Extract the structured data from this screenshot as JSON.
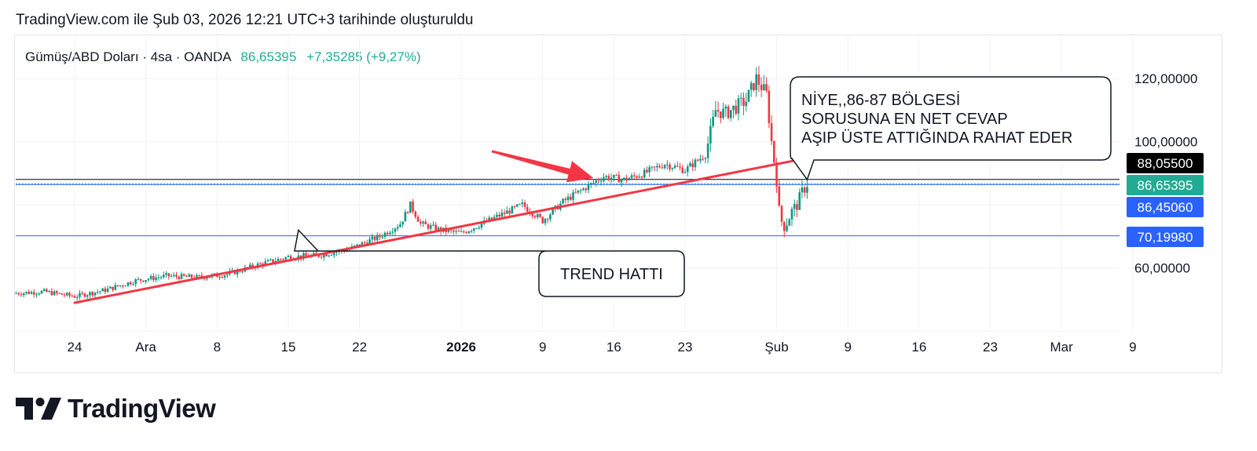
{
  "header": {
    "created_text": "TradingView.com ile Şub 03, 2026 12:21 UTC+3 tarihinde oluşturuldu"
  },
  "symbol": {
    "name": "Gümüş/ABD Doları · 4sa · OANDA",
    "price": "86,65395",
    "change": "+7,35285 (+9,27%)",
    "change_color": "#22ab94"
  },
  "brand": {
    "name": "TradingView",
    "logo_icon": "tradingview-logo-icon"
  },
  "chart_data": {
    "type": "candlestick",
    "instrument": "Gümüş/ABD Doları",
    "timeframe": "4sa",
    "source": "OANDA",
    "ylim": [
      45,
      125
    ],
    "y_ticks": [
      {
        "value": 120,
        "label": "120,00000"
      },
      {
        "value": 100,
        "label": "100,00000"
      },
      {
        "value": 60,
        "label": "60,00000"
      }
    ],
    "x_ticks": [
      {
        "day": 0,
        "label": "24"
      },
      {
        "day": 7,
        "label": "Ara"
      },
      {
        "day": 14,
        "label": "8"
      },
      {
        "day": 21,
        "label": "15"
      },
      {
        "day": 28,
        "label": "22"
      },
      {
        "day": 38,
        "label": "2026",
        "bold": true
      },
      {
        "day": 46,
        "label": "9"
      },
      {
        "day": 53,
        "label": "16"
      },
      {
        "day": 60,
        "label": "23"
      },
      {
        "day": 69,
        "label": "Şub"
      },
      {
        "day": 76,
        "label": "9"
      },
      {
        "day": 83,
        "label": "16"
      },
      {
        "day": 90,
        "label": "23"
      },
      {
        "day": 97,
        "label": "Mar"
      },
      {
        "day": 104,
        "label": "9"
      }
    ],
    "price_levels": [
      {
        "value": 88.055,
        "label": "88,05500",
        "color": "#000000",
        "line": "solid"
      },
      {
        "value": 86.65395,
        "label": "86,65395",
        "color": "#22ab94",
        "line": "dotted"
      },
      {
        "value": 86.4506,
        "label": "86,45060",
        "color": "#2962ff",
        "line": "solid"
      },
      {
        "value": 70.1998,
        "label": "70,19980",
        "color": "#2962ff",
        "line": "solid"
      }
    ],
    "trend_line": {
      "from": {
        "day": 0,
        "value": 49
      },
      "to": {
        "day": 77,
        "value": 98
      },
      "color": "#f23645"
    },
    "close_path": [
      {
        "day": -6,
        "value": 52
      },
      {
        "day": -3,
        "value": 52.5
      },
      {
        "day": 0,
        "value": 51
      },
      {
        "day": 3,
        "value": 53
      },
      {
        "day": 6,
        "value": 56
      },
      {
        "day": 9,
        "value": 57.5
      },
      {
        "day": 12,
        "value": 57
      },
      {
        "day": 15,
        "value": 58
      },
      {
        "day": 18,
        "value": 61
      },
      {
        "day": 21,
        "value": 63.5
      },
      {
        "day": 24,
        "value": 64
      },
      {
        "day": 27,
        "value": 66
      },
      {
        "day": 30,
        "value": 70
      },
      {
        "day": 32,
        "value": 74
      },
      {
        "day": 33,
        "value": 80
      },
      {
        "day": 34,
        "value": 74
      },
      {
        "day": 36,
        "value": 72
      },
      {
        "day": 38,
        "value": 71
      },
      {
        "day": 40,
        "value": 74
      },
      {
        "day": 42,
        "value": 77
      },
      {
        "day": 44,
        "value": 80
      },
      {
        "day": 46,
        "value": 75
      },
      {
        "day": 48,
        "value": 81
      },
      {
        "day": 50,
        "value": 85
      },
      {
        "day": 52,
        "value": 89
      },
      {
        "day": 54,
        "value": 88
      },
      {
        "day": 56,
        "value": 90
      },
      {
        "day": 58,
        "value": 93
      },
      {
        "day": 60,
        "value": 91
      },
      {
        "day": 62,
        "value": 96
      },
      {
        "day": 63,
        "value": 110
      },
      {
        "day": 64,
        "value": 109
      },
      {
        "day": 66,
        "value": 113
      },
      {
        "day": 67,
        "value": 120
      },
      {
        "day": 68,
        "value": 115
      },
      {
        "day": 68.5,
        "value": 100
      },
      {
        "day": 69,
        "value": 88
      },
      {
        "day": 69.3,
        "value": 76
      },
      {
        "day": 69.8,
        "value": 73
      },
      {
        "day": 70.5,
        "value": 78
      },
      {
        "day": 71,
        "value": 80
      },
      {
        "day": 71.5,
        "value": 84
      },
      {
        "day": 72,
        "value": 86.65
      }
    ],
    "annotations": [
      {
        "kind": "callout",
        "text": "TREND HATTI",
        "anchor": {
          "day": 22,
          "value": 72
        }
      },
      {
        "kind": "callout",
        "lines": [
          "NİYE,,86-87 BÖLGESİ",
          "SORUSUNA EN NET CEVAP",
          "AŞIP ÜSTE ATTIĞINDA RAHAT EDER"
        ],
        "anchor": {
          "day": 72,
          "value": 88
        }
      },
      {
        "kind": "arrow",
        "color": "#f23645",
        "from": {
          "day": 41,
          "value": 97
        },
        "to": {
          "day": 51,
          "value": 88.5
        }
      }
    ]
  }
}
